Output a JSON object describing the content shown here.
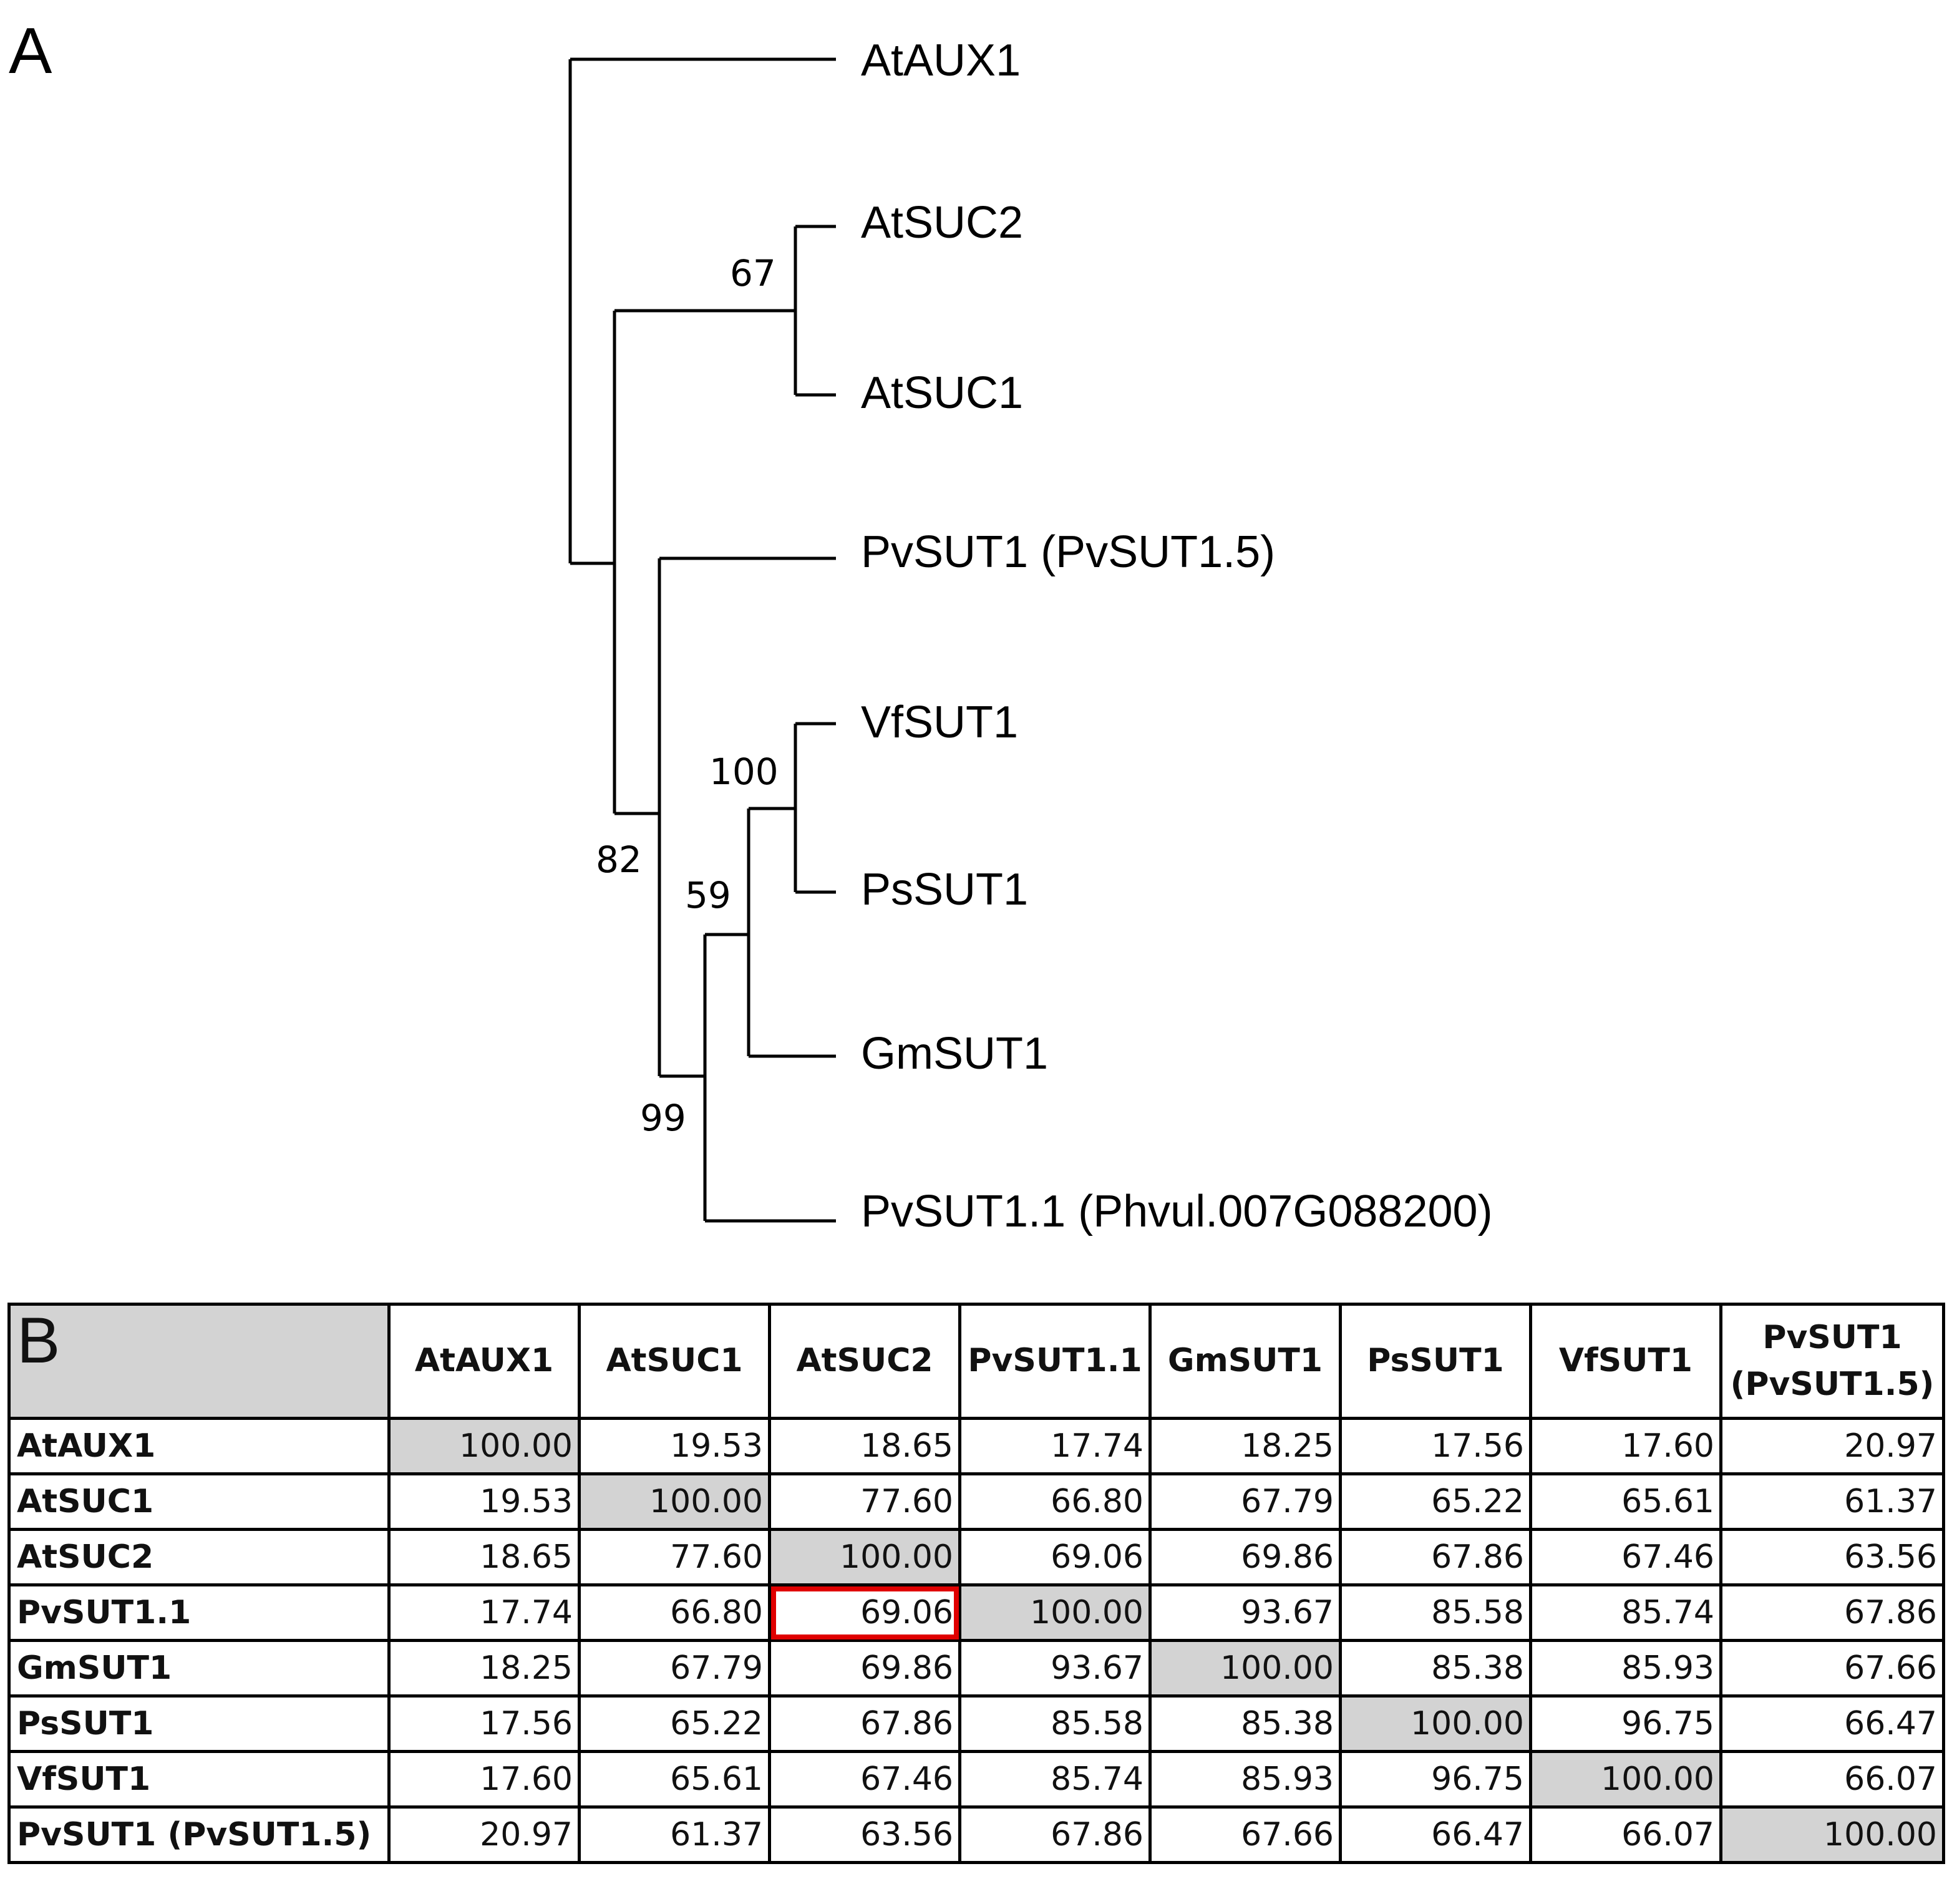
{
  "panel_a": {
    "label": "A",
    "taxa": [
      "AtAUX1",
      "AtSUC2",
      "AtSUC1",
      "PvSUT1 (PvSUT1.5)",
      "VfSUT1",
      "PsSUT1",
      "GmSUT1",
      "PvSUT1.1 (Phvul.007G088200)"
    ],
    "bootstrap": {
      "AtSUC2_AtSUC1": "67",
      "VfSUT1_PsSUT1": "100",
      "Gm_clade": "59",
      "SUT_clade": "82",
      "PvSUT1.1_clade": "99"
    }
  },
  "panel_b": {
    "label": "B",
    "columns": [
      "AtAUX1",
      "AtSUC1",
      "AtSUC2",
      "PvSUT1.1",
      "GmSUT1",
      "PsSUT1",
      "VfSUT1",
      "PvSUT1 (PvSUT1.5)"
    ],
    "rows": [
      {
        "name": "AtAUX1",
        "values": [
          "100.00",
          "19.53",
          "18.65",
          "17.74",
          "18.25",
          "17.56",
          "17.60",
          "20.97"
        ]
      },
      {
        "name": "AtSUC1",
        "values": [
          "19.53",
          "100.00",
          "77.60",
          "66.80",
          "67.79",
          "65.22",
          "65.61",
          "61.37"
        ]
      },
      {
        "name": "AtSUC2",
        "values": [
          "18.65",
          "77.60",
          "100.00",
          "69.06",
          "69.86",
          "67.86",
          "67.46",
          "63.56"
        ]
      },
      {
        "name": "PvSUT1.1",
        "values": [
          "17.74",
          "66.80",
          "69.06",
          "100.00",
          "93.67",
          "85.58",
          "85.74",
          "67.86"
        ]
      },
      {
        "name": "GmSUT1",
        "values": [
          "18.25",
          "67.79",
          "69.86",
          "93.67",
          "100.00",
          "85.38",
          "85.93",
          "67.66"
        ]
      },
      {
        "name": "PsSUT1",
        "values": [
          "17.56",
          "65.22",
          "67.86",
          "85.58",
          "85.38",
          "100.00",
          "96.75",
          "66.47"
        ]
      },
      {
        "name": "VfSUT1",
        "values": [
          "17.60",
          "65.61",
          "67.46",
          "85.74",
          "85.93",
          "96.75",
          "100.00",
          "66.07"
        ]
      },
      {
        "name": "PvSUT1 (PvSUT1.5)",
        "values": [
          "20.97",
          "61.37",
          "63.56",
          "67.86",
          "67.66",
          "66.47",
          "66.07",
          "100.00"
        ]
      }
    ],
    "highlighted_cell": {
      "row": "PvSUT1.1",
      "column": "AtSUC2",
      "color": "#e00000"
    },
    "diagonal_color": "#d3d3d3"
  }
}
